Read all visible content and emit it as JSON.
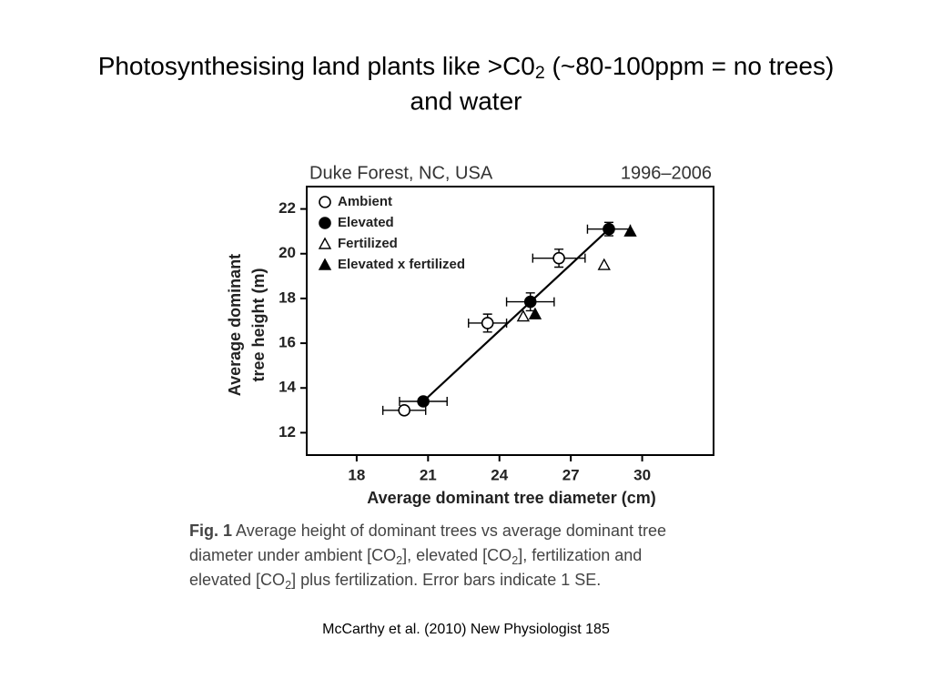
{
  "slide": {
    "title_line1": [
      "Photosynthesising land plants like >C0",
      "2",
      " (~80-100ppm = no trees)"
    ],
    "title_line2": "and water",
    "citation": "McCarthy et al. (2010) New Physiologist 185"
  },
  "chart_data": {
    "type": "scatter",
    "title": "Duke Forest, NC, USA",
    "subtitle": "1996–2006",
    "xlabel": "Average dominant tree diameter (cm)",
    "ylabel": [
      "Average dominant",
      "tree height (m)"
    ],
    "xlim": [
      15.9,
      33
    ],
    "ylim": [
      11,
      23
    ],
    "xticks": [
      18,
      21,
      24,
      27,
      30
    ],
    "yticks": [
      12,
      14,
      16,
      18,
      20,
      22
    ],
    "grid": false,
    "legend": "upper left",
    "series": [
      {
        "name": "Ambient",
        "marker": "circle",
        "filled": false,
        "color": "#000",
        "x": [
          20.0,
          23.5,
          26.5
        ],
        "y": [
          13.0,
          16.9,
          19.8
        ],
        "xerr": [
          0.9,
          0.8,
          1.1
        ],
        "yerr": [
          null,
          0.4,
          0.4
        ]
      },
      {
        "name": "Elevated",
        "marker": "circle",
        "filled": true,
        "color": "#000",
        "x": [
          20.8,
          25.3,
          28.6
        ],
        "y": [
          13.4,
          17.85,
          21.1
        ],
        "xerr": [
          1.0,
          1.0,
          0.9
        ],
        "yerr": [
          null,
          0.4,
          0.3
        ]
      },
      {
        "name": "Fertilized",
        "marker": "triangle",
        "filled": false,
        "color": "#000",
        "x": [
          25.0,
          28.4
        ],
        "y": [
          17.2,
          19.5
        ],
        "xerr": [
          null,
          null
        ],
        "yerr": [
          null,
          null
        ]
      },
      {
        "name": "Elevated x fertilized",
        "marker": "triangle",
        "filled": true,
        "color": "#000",
        "x": [
          25.5,
          29.5
        ],
        "y": [
          17.3,
          21.0
        ],
        "xerr": [
          null,
          null
        ],
        "yerr": [
          null,
          null
        ]
      }
    ],
    "fit_line": {
      "x": [
        20.8,
        28.6
      ],
      "y": [
        13.4,
        21.1
      ]
    },
    "caption": {
      "label": "Fig. 1",
      "lines": [
        [
          " Average height of dominant trees vs average dominant tree"
        ],
        [
          "diameter under ambient [CO",
          "2",
          "], elevated [CO",
          "2",
          "], fertilization and"
        ],
        [
          "elevated [CO",
          "2",
          "] plus fertilization. Error bars indicate 1 SE."
        ]
      ]
    }
  }
}
